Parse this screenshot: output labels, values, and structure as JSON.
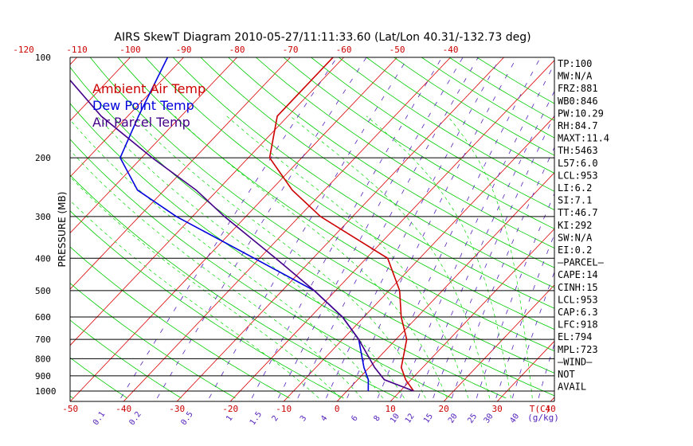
{
  "title": "AIRS SkewT Diagram 2010-05-27/11:11:33.60 (Lat/Lon 40.31/-132.73 deg)",
  "colors": {
    "background": "#ffffff",
    "frame": "#000000",
    "ambient": "#cc0000",
    "dewpoint": "#0000dd",
    "parcel": "#440088",
    "isotherm": "#dd0000",
    "dry_adiabat": "#00cc00",
    "moist_adiabat": "#22dd22",
    "mixing_ratio": "#5522bb",
    "axis_labels": "#cc0000"
  },
  "legend": {
    "ambient": "Ambient Air Temp",
    "dewpoint": "Dew Point Temp",
    "parcel": "Air Parcel Temp"
  },
  "chart_data": {
    "type": "line",
    "title": "AIRS SkewT Diagram 2010-05-27/11:11:33.60 (Lat/Lon 40.31/-132.73 deg)",
    "ylabel": "PRESSURE (MB)",
    "y_scale": "log",
    "ylim": [
      1050,
      100
    ],
    "xlim": [
      -55,
      45
    ],
    "y_ticks": [
      "100",
      "200",
      "300",
      "400",
      "500",
      "600",
      "700",
      "800",
      "900",
      "1000"
    ],
    "x_bottom_ticks": [
      "-50",
      "-40",
      "-30",
      "-20",
      "-10",
      "0",
      "10",
      "20",
      "30",
      "40"
    ],
    "x_top_ticks": [
      "-120",
      "-110",
      "-100",
      "-90",
      "-80",
      "-70",
      "-60",
      "-50",
      "-40"
    ],
    "x_unit_label": "T(C)",
    "mixing_ratio_labels": [
      "0.1",
      "0.2",
      "0.5",
      "1",
      "1.5",
      "2",
      "3",
      "4",
      "6",
      "8",
      "10",
      "12",
      "15",
      "20",
      "25",
      "30",
      "40"
    ],
    "mixing_ratio_unit": "(g/kg)",
    "grid": true,
    "legend_position": "top-left",
    "series": [
      {
        "name": "Ambient Air Temp",
        "pressure": [
          1000,
          925,
          850,
          700,
          600,
          500,
          400,
          300,
          250,
          200,
          150,
          100
        ],
        "temp": [
          12.5,
          9,
          6,
          2,
          -3,
          -8,
          -16,
          -36,
          -46,
          -56,
          -62,
          -62
        ]
      },
      {
        "name": "Dew Point Temp",
        "pressure": [
          1000,
          925,
          850,
          700,
          600,
          500,
          400,
          300,
          250,
          200,
          150,
          100
        ],
        "temp": [
          4,
          2,
          -1,
          -7,
          -14,
          -24,
          -41,
          -63,
          -75,
          -84,
          -88,
          -93
        ]
      },
      {
        "name": "Air Parcel Temp",
        "pressure": [
          1000,
          925,
          850,
          700,
          600,
          500,
          400,
          300,
          250,
          200,
          150,
          100
        ],
        "temp": [
          12.5,
          5,
          1,
          -7,
          -14,
          -24,
          -37,
          -54,
          -64,
          -78,
          -95,
          -115
        ]
      }
    ]
  },
  "side_panel": [
    "TP:100",
    "MW:N/A",
    "FRZ:881",
    "WB0:846",
    "PW:10.29",
    "RH:84.7",
    "MAXT:11.4",
    "TH:5463",
    "L57:6.0",
    "LCL:953",
    "LI:6.2",
    "SI:7.1",
    "TT:46.7",
    "KI:292",
    "SW:N/A",
    "EI:0.2",
    "—PARCEL—",
    "CAPE:14",
    "CINH:15",
    "LCL:953",
    "CAP:6.3",
    "LFC:918",
    "EL:794",
    "MPL:723",
    "—WIND—",
    "NOT",
    "AVAIL"
  ]
}
